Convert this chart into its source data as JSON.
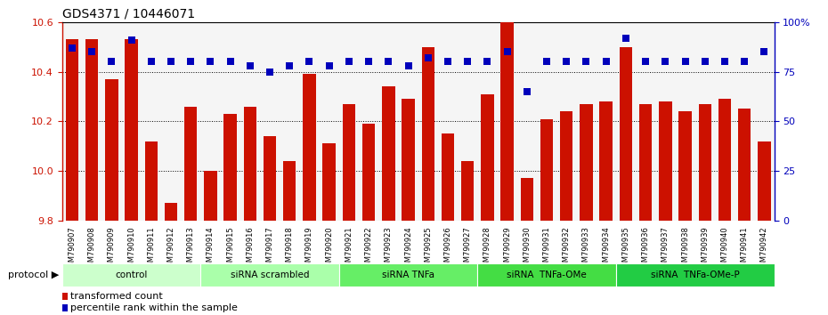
{
  "title": "GDS4371 / 10446071",
  "samples": [
    "GSM790907",
    "GSM790908",
    "GSM790909",
    "GSM790910",
    "GSM790911",
    "GSM790912",
    "GSM790913",
    "GSM790914",
    "GSM790915",
    "GSM790916",
    "GSM790917",
    "GSM790918",
    "GSM790919",
    "GSM790920",
    "GSM790921",
    "GSM790922",
    "GSM790923",
    "GSM790924",
    "GSM790925",
    "GSM790926",
    "GSM790927",
    "GSM790928",
    "GSM790929",
    "GSM790930",
    "GSM790931",
    "GSM790932",
    "GSM790933",
    "GSM790934",
    "GSM790935",
    "GSM790936",
    "GSM790937",
    "GSM790938",
    "GSM790939",
    "GSM790940",
    "GSM790941",
    "GSM790942"
  ],
  "bar_values": [
    10.53,
    10.53,
    10.37,
    10.53,
    10.12,
    9.87,
    10.26,
    10.0,
    10.23,
    10.26,
    10.14,
    10.04,
    10.39,
    10.11,
    10.27,
    10.19,
    10.34,
    10.29,
    10.5,
    10.15,
    10.04,
    10.31,
    10.67,
    9.97,
    10.21,
    10.24,
    10.27,
    10.28,
    10.5,
    10.27,
    10.28,
    10.24,
    10.27,
    10.29,
    10.25,
    10.12
  ],
  "percentile_values": [
    87,
    85,
    80,
    91,
    80,
    80,
    80,
    80,
    80,
    78,
    75,
    78,
    80,
    78,
    80,
    80,
    80,
    78,
    82,
    80,
    80,
    80,
    85,
    65,
    80,
    80,
    80,
    80,
    92,
    80,
    80,
    80,
    80,
    80,
    80,
    85
  ],
  "ylim_left": [
    9.8,
    10.6
  ],
  "ybaseline": 9.8,
  "ylim_right": [
    0,
    100
  ],
  "yticks_left": [
    9.8,
    10.0,
    10.2,
    10.4,
    10.6
  ],
  "yticks_right": [
    0,
    25,
    50,
    75,
    100
  ],
  "ytick_labels_right": [
    "0",
    "25",
    "50",
    "75",
    "100%"
  ],
  "bar_color": "#cc1100",
  "percentile_color": "#0000bb",
  "group_defs": [
    {
      "label": "control",
      "start": 0,
      "end": 6,
      "color": "#ccffcc"
    },
    {
      "label": "siRNA scrambled",
      "start": 7,
      "end": 13,
      "color": "#aaffaa"
    },
    {
      "label": "siRNA TNFa",
      "start": 14,
      "end": 20,
      "color": "#66ee66"
    },
    {
      "label": "siRNA  TNFa-OMe",
      "start": 21,
      "end": 27,
      "color": "#44dd44"
    },
    {
      "label": "siRNA  TNFa-OMe-P",
      "start": 28,
      "end": 35,
      "color": "#22cc44"
    }
  ],
  "legend_bar_label": "transformed count",
  "legend_pct_label": "percentile rank within the sample",
  "background_color": "#ffffff",
  "xtick_bg_color": "#cccccc",
  "grid_color": "#333333",
  "top_border_color": "#000000"
}
